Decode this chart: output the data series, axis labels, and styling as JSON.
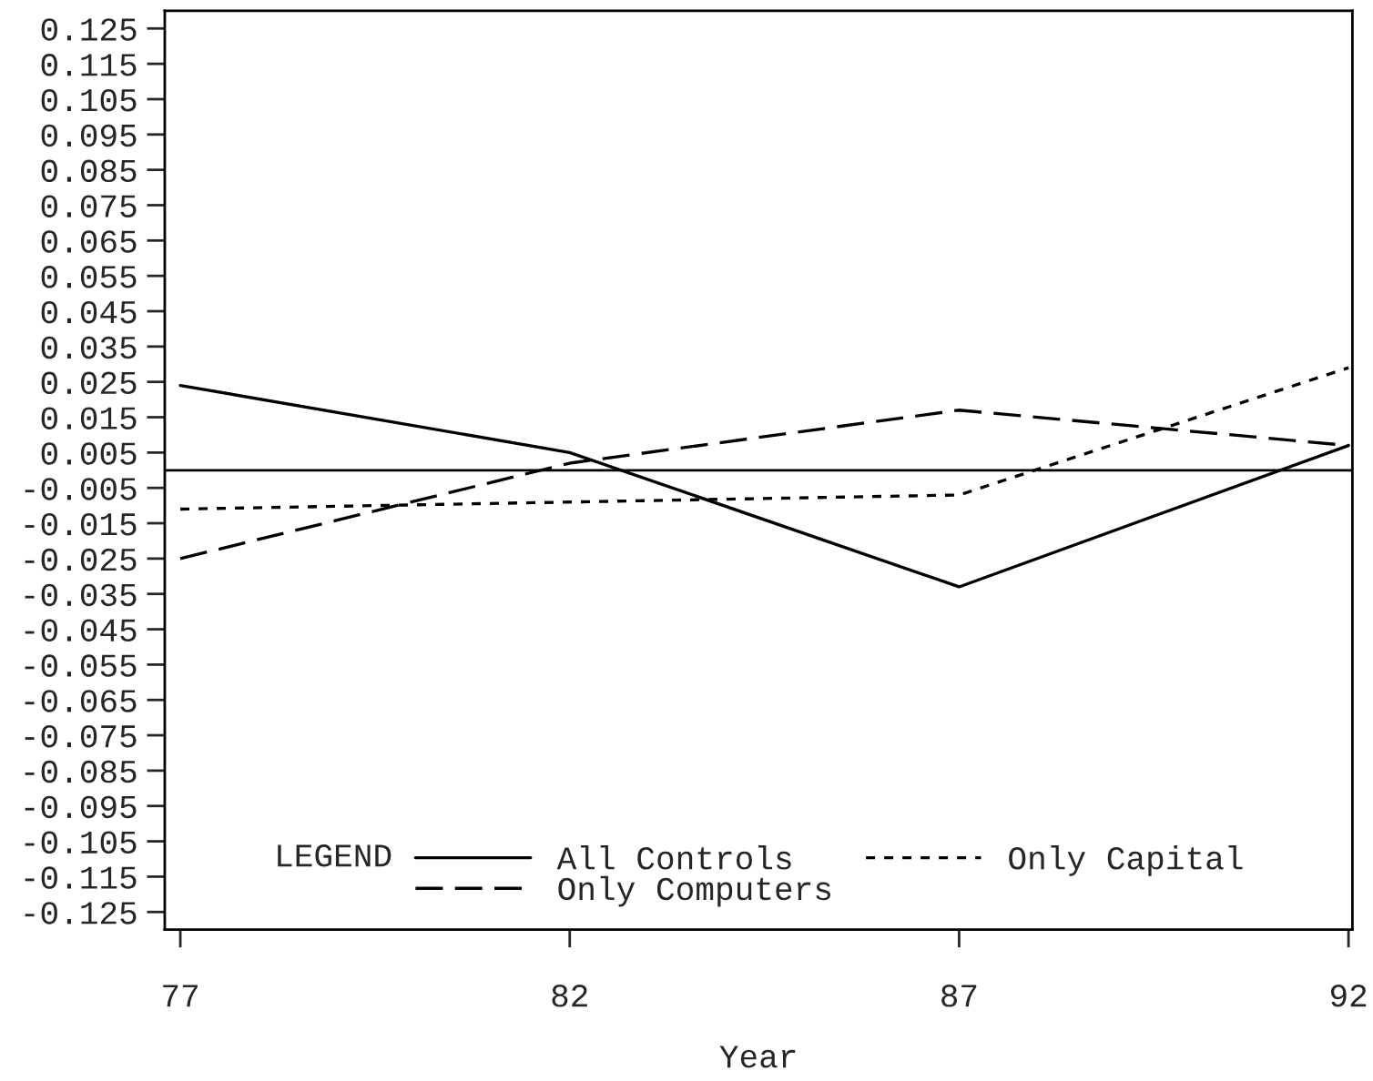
{
  "chart_data": {
    "type": "line",
    "xlabel": "Year",
    "x": [
      77,
      82,
      87,
      92
    ],
    "series": [
      {
        "name": "All Controls",
        "color": "#000000",
        "line_style": "solid",
        "values": [
          0.024,
          0.005,
          -0.033,
          0.007
        ]
      },
      {
        "name": "Only Capital",
        "color": "#000000",
        "line_style": "dotted",
        "values": [
          -0.011,
          -0.009,
          -0.007,
          0.029
        ]
      },
      {
        "name": "Only Computers",
        "color": "#000000",
        "line_style": "dashed",
        "values": [
          -0.025,
          0.002,
          0.017,
          0.007
        ]
      }
    ],
    "xlim": [
      76.8,
      92.05
    ],
    "xticks": [
      77,
      82,
      87,
      92
    ],
    "ylim": [
      -0.13,
      0.13
    ],
    "yticks": [
      -0.125,
      -0.115,
      -0.105,
      -0.095,
      -0.085,
      -0.075,
      -0.065,
      -0.055,
      -0.045,
      -0.035,
      -0.025,
      -0.015,
      -0.005,
      0.005,
      0.015,
      0.025,
      0.035,
      0.045,
      0.055,
      0.065,
      0.075,
      0.085,
      0.095,
      0.105,
      0.115,
      0.125
    ],
    "ref_lines": [
      {
        "axis": "y",
        "value": 0,
        "color": "#000000"
      }
    ],
    "legend": "bottom",
    "legend_title": "LEGEND",
    "grid": false,
    "marker": "none"
  }
}
